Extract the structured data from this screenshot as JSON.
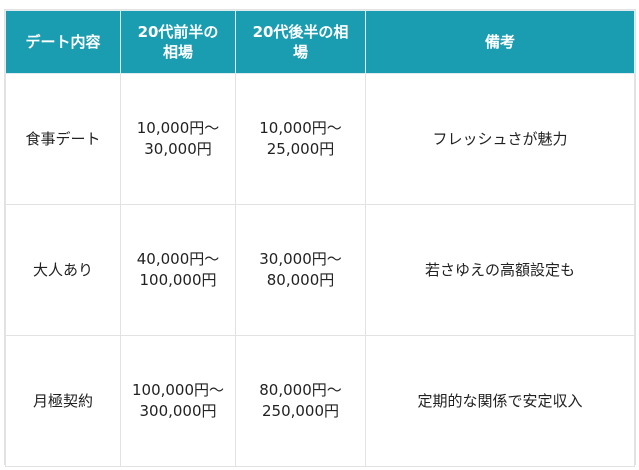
{
  "table": {
    "headers": [
      [
        "デート内容"
      ],
      [
        "20代前半の",
        "相場"
      ],
      [
        "20代後半の相",
        "場"
      ],
      [
        "備考"
      ]
    ],
    "rows": [
      {
        "type": "食事デート",
        "early20s": [
          "10,000円〜",
          "30,000円"
        ],
        "late20s": [
          "10,000円〜",
          "25,000円"
        ],
        "note": "フレッシュさが魅力"
      },
      {
        "type": "大人あり",
        "early20s": [
          "40,000円〜",
          "100,000円"
        ],
        "late20s": [
          "30,000円〜",
          "80,000円"
        ],
        "note": "若さゆえの高額設定も"
      },
      {
        "type": "月極契約",
        "early20s": [
          "100,000円〜",
          "300,000円"
        ],
        "late20s": [
          "80,000円〜",
          "250,000円"
        ],
        "note": "定期的な関係で安定収入"
      }
    ]
  },
  "colors": {
    "header_bg": "#1a9db1",
    "header_text": "#ffffff",
    "border": "#e2e2e2",
    "body_text": "#222222"
  }
}
